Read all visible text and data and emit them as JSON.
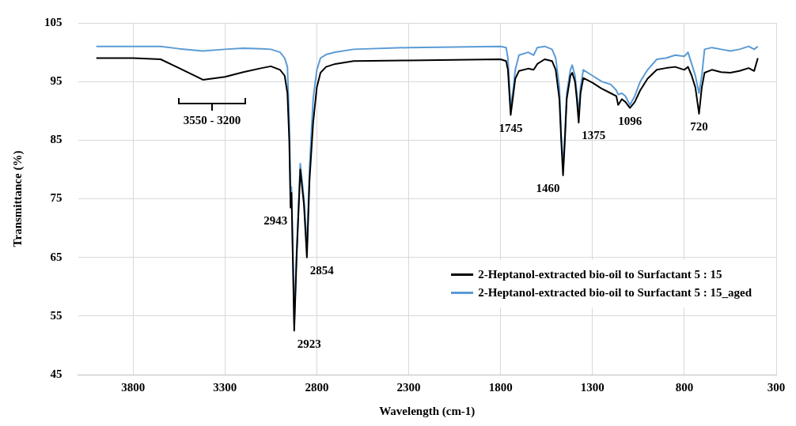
{
  "chart_data": {
    "type": "line",
    "xlabel": "Wavelength (cm-1)",
    "ylabel": "Transmittance (%)",
    "x": [
      4000,
      3800,
      3650,
      3550,
      3420,
      3300,
      3200,
      3100,
      3050,
      3000,
      2975,
      2960,
      2950,
      2943,
      2938,
      2930,
      2923,
      2910,
      2890,
      2870,
      2854,
      2840,
      2820,
      2800,
      2780,
      2750,
      2700,
      2600,
      2300,
      1800,
      1770,
      1760,
      1745,
      1730,
      1720,
      1700,
      1650,
      1620,
      1600,
      1560,
      1520,
      1500,
      1480,
      1470,
      1460,
      1450,
      1440,
      1420,
      1410,
      1395,
      1385,
      1375,
      1365,
      1350,
      1300,
      1250,
      1200,
      1170,
      1160,
      1140,
      1120,
      1096,
      1070,
      1040,
      1000,
      950,
      900,
      850,
      800,
      780,
      760,
      740,
      720,
      705,
      690,
      650,
      600,
      550,
      500,
      450,
      420,
      400
    ],
    "series": [
      {
        "name": "2-Heptanol-extracted bio-oil to Surfactant 5 : 15",
        "color": "#000000",
        "values": [
          99,
          99,
          98.8,
          97.3,
          95.3,
          95.8,
          96.6,
          97.3,
          97.6,
          97,
          96,
          93,
          85,
          73.5,
          76,
          64,
          52.5,
          65,
          80,
          74,
          65,
          78,
          88,
          94,
          96.5,
          97.5,
          98,
          98.5,
          98.6,
          98.8,
          98.5,
          97,
          89.3,
          93,
          95.5,
          96.8,
          97.2,
          97,
          98,
          98.8,
          98.5,
          97,
          92,
          85,
          79,
          85,
          92,
          96,
          96.5,
          95,
          92,
          88,
          93,
          95.6,
          94.8,
          93.8,
          93,
          92.5,
          91,
          92,
          91.5,
          90.5,
          91.5,
          93.5,
          95.5,
          97,
          97.3,
          97.5,
          97,
          97.5,
          96,
          94,
          89.5,
          94,
          96.5,
          97,
          96.6,
          96.5,
          96.8,
          97.3,
          96.8,
          99
        ]
      },
      {
        "name": "2-Heptanol-extracted bio-oil to Surfactant 5 : 15_aged",
        "color": "#5b9bd5",
        "values": [
          101,
          101,
          101,
          100.6,
          100.2,
          100.5,
          100.7,
          100.6,
          100.5,
          100,
          99,
          97.5,
          88,
          77,
          77,
          65,
          53.5,
          66,
          81,
          75,
          66.5,
          80,
          92,
          97,
          99,
          99.6,
          100,
          100.5,
          100.8,
          101,
          100.8,
          99,
          90.5,
          94,
          97,
          99.5,
          100,
          99.5,
          100.8,
          101,
          100.5,
          99,
          94,
          86,
          80.4,
          86,
          93,
          97,
          97.8,
          96,
          93,
          89.4,
          94,
          97,
          96,
          95,
          94.5,
          93.5,
          92.8,
          93,
          92.5,
          91,
          92.5,
          95,
          97,
          98.8,
          99,
          99.5,
          99.3,
          100,
          98,
          96,
          93,
          96,
          100.5,
          100.8,
          100.5,
          100.2,
          100.5,
          101,
          100.5,
          101
        ]
      }
    ],
    "xlim": [
      4100,
      300
    ],
    "xticks": [
      3800,
      3300,
      2800,
      2300,
      1800,
      1300,
      800,
      300
    ],
    "ylim": [
      45,
      105
    ],
    "yticks": [
      45,
      55,
      65,
      75,
      85,
      95,
      105
    ],
    "grid": true,
    "legend": "bottom right",
    "marker": "none",
    "line_style": "solid",
    "annotations": [
      "3550 - 3200",
      {
        "text": "2943",
        "x": 2943,
        "y": 73.5
      },
      {
        "text": "2923",
        "x": 2923,
        "y": 52.5
      },
      {
        "text": "2854",
        "x": 2854,
        "y": 65
      },
      {
        "text": "1745",
        "x": 1745,
        "y": 89.3
      },
      {
        "text": "1460",
        "x": 1460,
        "y": 79
      },
      {
        "text": "1375",
        "x": 1375,
        "y": 88
      },
      {
        "text": "1096",
        "x": 1096,
        "y": 90.5
      },
      {
        "text": "720",
        "x": 720,
        "y": 89.5
      }
    ]
  }
}
